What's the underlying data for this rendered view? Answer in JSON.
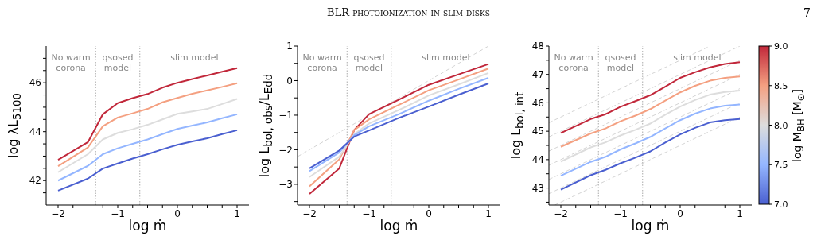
{
  "chart_data": [
    {
      "type": "other",
      "title": "BLR photoionization in slim disks",
      "annotations": [
        "7"
      ]
    },
    {
      "type": "line",
      "marker": "none",
      "line_style": "solid",
      "annotations": [
        "No warm\ncorona",
        "qsosed\nmodel",
        "slim model"
      ],
      "xlabel": "log ṁ",
      "ylabel": "log λL$_{5100}$",
      "xlim": [
        -2.2,
        1.2
      ],
      "xticks": [
        {
          "value": -2,
          "label": "−2"
        },
        {
          "value": -1.75,
          "label": null
        },
        {
          "value": -1.5,
          "label": null
        },
        {
          "value": -1.25,
          "label": null
        },
        {
          "value": -1,
          "label": "−1"
        },
        {
          "value": -0.75,
          "label": null
        },
        {
          "value": -0.5,
          "label": null
        },
        {
          "value": -0.25,
          "label": null
        },
        {
          "value": 0,
          "label": "0"
        },
        {
          "value": 0.25,
          "label": null
        },
        {
          "value": 0.5,
          "label": null
        },
        {
          "value": 0.75,
          "label": null
        },
        {
          "value": 1,
          "label": "1"
        }
      ],
      "ylim": [
        41,
        47.5
      ],
      "yticks": [
        {
          "value": 41.5,
          "label": null
        },
        {
          "value": 42,
          "label": "42"
        },
        {
          "value": 42.5,
          "label": null
        },
        {
          "value": 43,
          "label": null
        },
        {
          "value": 43.5,
          "label": null
        },
        {
          "value": 44,
          "label": "44"
        },
        {
          "value": 44.5,
          "label": null
        },
        {
          "value": 45,
          "label": null
        },
        {
          "value": 45.5,
          "label": null
        },
        {
          "value": 46,
          "label": "46"
        },
        {
          "value": 46.5,
          "label": null
        },
        {
          "value": 47,
          "label": null
        }
      ],
      "ref_lines": [
        {
          "axis": "x",
          "value": -1.37,
          "color": "#aaaaaa",
          "line_style": "dotted"
        },
        {
          "axis": "x",
          "value": -0.63,
          "color": "#aaaaaa",
          "line_style": "dotted"
        }
      ],
      "x": [
        -2,
        -1.5,
        -1.25,
        -1,
        -0.75,
        -0.5,
        -0.25,
        0,
        0.25,
        0.5,
        0.75,
        1
      ],
      "series": [
        {
          "color": "#c1273a",
          "values": [
            42.85,
            43.57,
            44.71,
            45.17,
            45.37,
            45.54,
            45.8,
            46.0,
            46.15,
            46.3,
            46.45,
            46.6
          ]
        },
        {
          "color": "#f4a081",
          "values": [
            42.59,
            43.35,
            44.22,
            44.58,
            44.75,
            44.93,
            45.2,
            45.38,
            45.55,
            45.69,
            45.83,
            45.98
          ]
        },
        {
          "color": "#dddddd",
          "values": [
            42.34,
            43.08,
            43.68,
            43.95,
            44.1,
            44.28,
            44.5,
            44.73,
            44.83,
            44.93,
            45.13,
            45.34
          ]
        },
        {
          "color": "#94b6ff",
          "values": [
            42.0,
            42.6,
            43.08,
            43.32,
            43.5,
            43.68,
            43.9,
            44.11,
            44.25,
            44.38,
            44.55,
            44.71
          ]
        },
        {
          "color": "#4a5fd0",
          "values": [
            41.59,
            42.08,
            42.49,
            42.7,
            42.9,
            43.08,
            43.28,
            43.46,
            43.6,
            43.73,
            43.9,
            44.06
          ]
        }
      ]
    },
    {
      "type": "line",
      "marker": "none",
      "line_style": "solid",
      "annotations": [
        "No warm\ncorona",
        "qsosed\nmodel",
        "slim model"
      ],
      "xlabel": "log ṁ",
      "ylabel": "log L$_{bol, obs}$/L$_{Edd}$",
      "xlim": [
        -2.2,
        1.2
      ],
      "xticks": [
        {
          "value": -2,
          "label": "−2"
        },
        {
          "value": -1.75,
          "label": null
        },
        {
          "value": -1.5,
          "label": null
        },
        {
          "value": -1.25,
          "label": null
        },
        {
          "value": -1,
          "label": "−1"
        },
        {
          "value": -0.75,
          "label": null
        },
        {
          "value": -0.5,
          "label": null
        },
        {
          "value": -0.25,
          "label": null
        },
        {
          "value": 0,
          "label": "0"
        },
        {
          "value": 0.25,
          "label": null
        },
        {
          "value": 0.5,
          "label": null
        },
        {
          "value": 0.75,
          "label": null
        },
        {
          "value": 1,
          "label": "1"
        }
      ],
      "ylim": [
        -3.6,
        1
      ],
      "yticks": [
        {
          "value": -3.5,
          "label": null
        },
        {
          "value": -3,
          "label": "−3"
        },
        {
          "value": -2.5,
          "label": null
        },
        {
          "value": -2,
          "label": "−2"
        },
        {
          "value": -1.5,
          "label": null
        },
        {
          "value": -1,
          "label": "−1"
        },
        {
          "value": -0.5,
          "label": null
        },
        {
          "value": 0,
          "label": "0"
        },
        {
          "value": 0.5,
          "label": null
        },
        {
          "value": 1,
          "label": "1"
        }
      ],
      "ref_lines": [
        {
          "axis": "x",
          "value": -1.37,
          "color": "#aaaaaa",
          "line_style": "dotted"
        },
        {
          "axis": "x",
          "value": -0.63,
          "color": "#aaaaaa",
          "line_style": "dotted"
        }
      ],
      "x": [
        -2,
        -1.5,
        -1.25,
        -1,
        -0.5,
        0,
        0.5,
        1
      ],
      "series": [
        {
          "type": "line",
          "color": "#c8c8c8",
          "line_style": "dashed",
          "x": [
            -2.2,
            1
          ],
          "values": [
            -2.2,
            1
          ]
        },
        {
          "color": "#c1273a",
          "values": [
            -3.28,
            -2.54,
            -1.43,
            -0.97,
            -0.55,
            -0.12,
            0.18,
            0.48
          ]
        },
        {
          "color": "#f4a081",
          "values": [
            -3.06,
            -2.28,
            -1.43,
            -1.12,
            -0.7,
            -0.28,
            0.03,
            0.35
          ]
        },
        {
          "color": "#dddddd",
          "values": [
            -2.79,
            -2.2,
            -1.55,
            -1.24,
            -0.85,
            -0.43,
            -0.11,
            0.22
          ]
        },
        {
          "color": "#94b6ff",
          "values": [
            -2.62,
            -2.08,
            -1.58,
            -1.32,
            -0.97,
            -0.58,
            -0.24,
            0.08
          ]
        },
        {
          "color": "#4a5fd0",
          "values": [
            -2.54,
            -2.02,
            -1.62,
            -1.44,
            -1.08,
            -0.75,
            -0.41,
            -0.08
          ]
        }
      ]
    },
    {
      "type": "line",
      "marker": "none",
      "line_style": "solid",
      "annotations": [
        "No warm\ncorona",
        "qsosed\nmodel",
        "slim model"
      ],
      "xlabel": "log ṁ",
      "ylabel": "log L$_{bol, int}$",
      "clabel": "log M$_{BH}$ [M$_{⊙}$]",
      "clim": [
        7,
        9
      ],
      "cticks": [
        {
          "value": 7,
          "label": "7.0"
        },
        {
          "value": 7.5,
          "label": "7.5"
        },
        {
          "value": 8,
          "label": "8.0"
        },
        {
          "value": 8.5,
          "label": "8.5"
        },
        {
          "value": 9,
          "label": "9.0"
        }
      ],
      "xlim": [
        -2.2,
        1.2
      ],
      "xticks": [
        {
          "value": -2,
          "label": "−2"
        },
        {
          "value": -1.75,
          "label": null
        },
        {
          "value": -1.5,
          "label": null
        },
        {
          "value": -1.25,
          "label": null
        },
        {
          "value": -1,
          "label": "−1"
        },
        {
          "value": -0.75,
          "label": null
        },
        {
          "value": -0.5,
          "label": null
        },
        {
          "value": -0.25,
          "label": null
        },
        {
          "value": 0,
          "label": "0"
        },
        {
          "value": 0.25,
          "label": null
        },
        {
          "value": 0.5,
          "label": null
        },
        {
          "value": 0.75,
          "label": null
        },
        {
          "value": 1,
          "label": "1"
        }
      ],
      "ylim": [
        42.4,
        48
      ],
      "yticks": [
        {
          "value": 42.5,
          "label": null
        },
        {
          "value": 43,
          "label": "43"
        },
        {
          "value": 43.5,
          "label": null
        },
        {
          "value": 44,
          "label": "44"
        },
        {
          "value": 44.5,
          "label": null
        },
        {
          "value": 45,
          "label": "45"
        },
        {
          "value": 45.5,
          "label": null
        },
        {
          "value": 46,
          "label": "46"
        },
        {
          "value": 46.5,
          "label": null
        },
        {
          "value": 47,
          "label": "47"
        },
        {
          "value": 47.5,
          "label": null
        },
        {
          "value": 48,
          "label": "48"
        }
      ],
      "ref_lines": [
        {
          "axis": "x",
          "value": -1.37,
          "color": "#aaaaaa",
          "line_style": "dotted"
        },
        {
          "axis": "x",
          "value": -0.63,
          "color": "#aaaaaa",
          "line_style": "dotted"
        }
      ],
      "x": [
        -2,
        -1.5,
        -1.25,
        -1,
        -0.75,
        -0.5,
        -0.25,
        0,
        0.25,
        0.5,
        0.75,
        1
      ],
      "series": [
        {
          "type": "line",
          "color": "#c8c8c8",
          "line_style": "dashed",
          "x": [
            -2.1,
            1
          ],
          "values": [
            42.4,
            45.5
          ]
        },
        {
          "type": "line",
          "color": "#c8c8c8",
          "line_style": "dashed",
          "x": [
            -2.2,
            1
          ],
          "values": [
            42.8,
            46
          ]
        },
        {
          "type": "line",
          "color": "#c8c8c8",
          "line_style": "dashed",
          "x": [
            -2.2,
            1
          ],
          "values": [
            43.3,
            46.5
          ]
        },
        {
          "type": "line",
          "color": "#c8c8c8",
          "line_style": "dashed",
          "x": [
            -2.2,
            1
          ],
          "values": [
            43.8,
            47
          ]
        },
        {
          "type": "line",
          "color": "#c8c8c8",
          "line_style": "dashed",
          "x": [
            -2.2,
            1
          ],
          "values": [
            44.3,
            47.5
          ]
        },
        {
          "type": "line",
          "color": "#c8c8c8",
          "line_style": "dashed",
          "x": [
            -2.2,
            1
          ],
          "values": [
            44.8,
            48
          ]
        },
        {
          "type": "line",
          "color": "#c8c8c8",
          "line_style": "dashed",
          "x": [
            -2.2,
            0.5
          ],
          "values": [
            45.3,
            48
          ]
        },
        {
          "color": "#c1273a",
          "values": [
            44.94,
            45.43,
            45.6,
            45.86,
            46.06,
            46.27,
            46.57,
            46.88,
            47.08,
            47.25,
            47.37,
            47.43
          ]
        },
        {
          "color": "#f4a081",
          "values": [
            44.45,
            44.92,
            45.1,
            45.35,
            45.55,
            45.78,
            46.08,
            46.37,
            46.6,
            46.78,
            46.88,
            46.93
          ]
        },
        {
          "color": "#dddddd",
          "values": [
            43.93,
            44.43,
            44.61,
            44.85,
            45.05,
            45.27,
            45.58,
            45.87,
            46.1,
            46.29,
            46.38,
            46.43
          ]
        },
        {
          "color": "#94b6ff",
          "values": [
            43.43,
            43.92,
            44.1,
            44.36,
            44.57,
            44.8,
            45.1,
            45.39,
            45.62,
            45.8,
            45.9,
            45.94
          ]
        },
        {
          "color": "#4a5fd0",
          "values": [
            42.94,
            43.45,
            43.64,
            43.87,
            44.07,
            44.29,
            44.6,
            44.89,
            45.12,
            45.31,
            45.39,
            45.43
          ]
        }
      ]
    }
  ]
}
